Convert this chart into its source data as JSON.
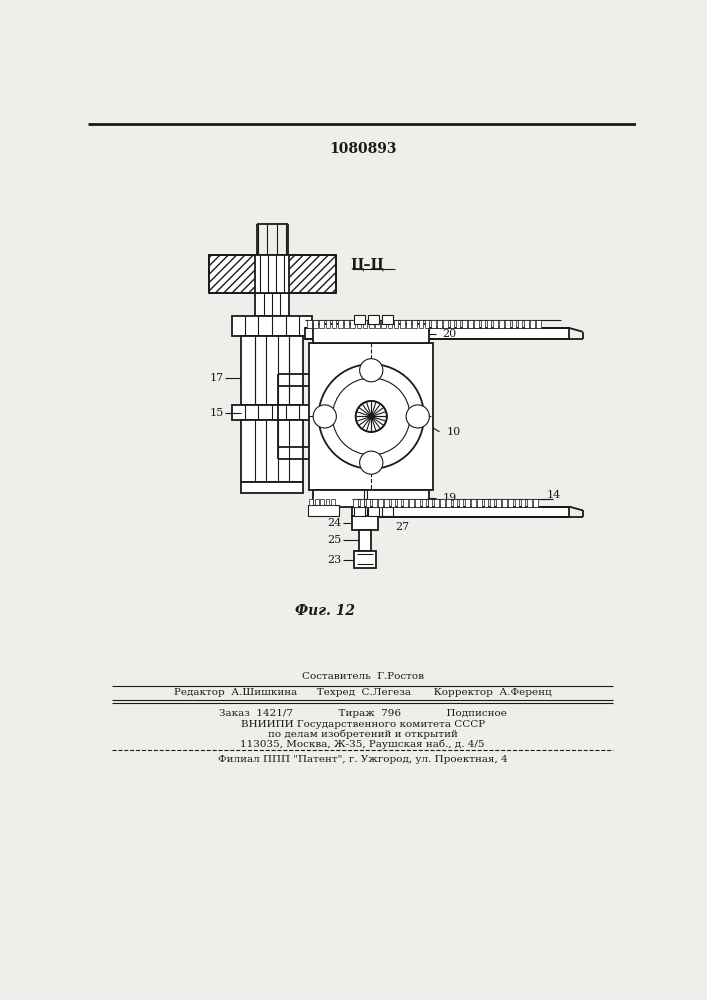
{
  "patent_number": "1080893",
  "fig_label": "Фиг. 12",
  "section_label": "Ц–Ц",
  "background_color": "#f0eeea",
  "line_color": "#1a1a1a",
  "footer_lines": [
    "Составитель  Г.Ростов",
    "Редактор  А.Шишкина      Техред  С.Легеза       Корректор  А.Ференц",
    "Заказ  1421/7              Тираж  796              Подписное",
    "ВНИИПИ Государственного комитета СССР",
    "по делам изобретений и открытий",
    "113035, Москва, Ж-35, Раушская наб., д. 4/5",
    "Филиал ППП \"Патент\", г. Ужгород, ул. Проектная, 4"
  ]
}
